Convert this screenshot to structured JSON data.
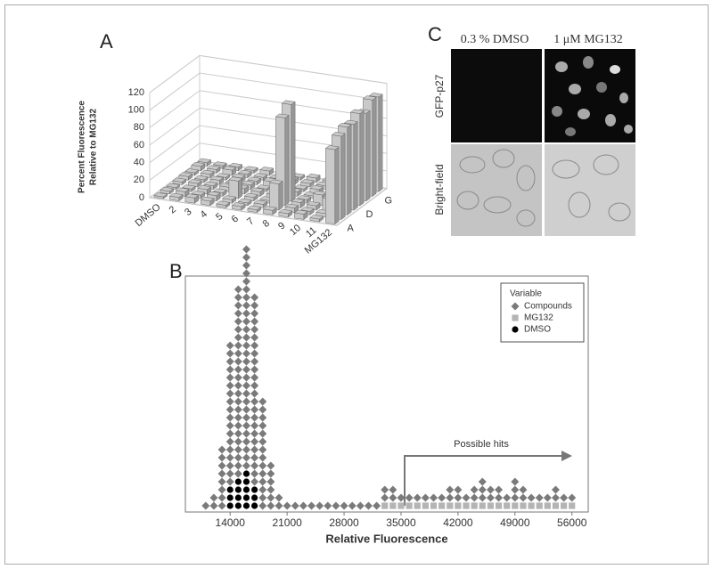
{
  "chart_data": [
    {
      "type": "bar3d",
      "panel_label": "A",
      "y_label": [
        "Percent Fluorescence",
        "Relative to MG132"
      ],
      "categories": [
        "DMSO",
        "2",
        "3",
        "4",
        "5",
        "6",
        "7",
        "8",
        "9",
        "10",
        "11",
        "MG132"
      ],
      "depth_categories": [
        "A",
        null,
        null,
        "D",
        null,
        null,
        "G",
        null
      ],
      "values": [
        [
          2,
          4,
          6,
          5,
          3,
          4,
          3,
          5,
          4,
          6,
          3,
          85
        ],
        [
          3,
          5,
          4,
          6,
          4,
          3,
          4,
          30,
          5,
          4,
          4,
          95
        ],
        [
          2,
          3,
          5,
          4,
          20,
          4,
          3,
          100,
          6,
          5,
          15,
          100
        ],
        [
          3,
          4,
          4,
          5,
          6,
          5,
          4,
          110,
          4,
          12,
          5,
          98
        ],
        [
          4,
          3,
          5,
          4,
          5,
          3,
          6,
          5,
          3,
          4,
          5,
          105
        ],
        [
          3,
          4,
          3,
          5,
          4,
          6,
          4,
          3,
          5,
          3,
          4,
          100
        ],
        [
          5,
          4,
          6,
          4,
          3,
          4,
          5,
          4,
          4,
          5,
          3,
          110
        ],
        [
          4,
          3,
          4,
          3,
          5,
          4,
          3,
          5,
          4,
          3,
          4,
          108
        ]
      ],
      "color": "#c9c9c9",
      "ylim": [
        0,
        120
      ],
      "yticks": [
        0,
        20,
        40,
        60,
        80,
        100,
        120
      ],
      "grid": true
    },
    {
      "type": "dot_histogram",
      "panel_label": "B",
      "x_label": "Relative Fluorescence",
      "x": [
        11000,
        12000,
        13000,
        14000,
        15000,
        16000,
        17000,
        18000,
        19000,
        20000,
        21000,
        22000,
        23000,
        24000,
        25000,
        26000,
        27000,
        28000,
        29000,
        30000,
        31000,
        32000,
        33000,
        34000,
        35000,
        36000,
        37000,
        38000,
        39000,
        40000,
        41000,
        42000,
        43000,
        44000,
        45000,
        46000,
        47000,
        48000,
        49000,
        50000,
        51000,
        52000,
        53000,
        54000,
        55000,
        56000
      ],
      "series": [
        {
          "name": "Compounds",
          "color": "#7a7a7a",
          "marker": "diamond",
          "values": [
            1,
            2,
            8,
            18,
            24,
            28,
            24,
            14,
            6,
            2,
            1,
            1,
            1,
            1,
            1,
            1,
            1,
            1,
            1,
            1,
            1,
            1,
            2,
            2,
            1,
            1,
            1,
            1,
            1,
            1,
            2,
            2,
            1,
            2,
            3,
            2,
            2,
            1,
            3,
            2,
            1,
            1,
            1,
            2,
            1,
            1
          ]
        },
        {
          "name": "MG132",
          "color": "#b4b4b4",
          "marker": "square",
          "values": [
            0,
            0,
            0,
            0,
            0,
            0,
            0,
            0,
            0,
            0,
            0,
            0,
            0,
            0,
            0,
            0,
            0,
            0,
            0,
            0,
            0,
            0,
            1,
            1,
            1,
            1,
            1,
            1,
            1,
            1,
            1,
            1,
            1,
            1,
            1,
            1,
            1,
            1,
            1,
            1,
            1,
            1,
            1,
            1,
            1,
            1
          ]
        },
        {
          "name": "DMSO",
          "color": "#000000",
          "marker": "circle",
          "values": [
            0,
            0,
            0,
            3,
            4,
            5,
            3,
            0,
            0,
            0,
            0,
            0,
            0,
            0,
            0,
            0,
            0,
            0,
            0,
            0,
            0,
            0,
            0,
            0,
            0,
            0,
            0,
            0,
            0,
            0,
            0,
            0,
            0,
            0,
            0,
            0,
            0,
            0,
            0,
            0,
            0,
            0,
            0,
            0,
            0,
            0
          ]
        }
      ],
      "stack_order": [
        "DMSO",
        "MG132",
        "Compounds"
      ],
      "legend_title": "Variable",
      "legend": "upper right",
      "annotation": "Possible hits",
      "xlim": [
        8500,
        58000
      ],
      "xticks": [
        14000,
        21000,
        28000,
        35000,
        42000,
        49000,
        56000
      ]
    }
  ],
  "micrographs": {
    "panel_label": "C",
    "columns": [
      "0.3 % DMSO",
      "1 μM MG132"
    ],
    "rows": [
      "GFP-p27",
      "Bright-field"
    ]
  }
}
